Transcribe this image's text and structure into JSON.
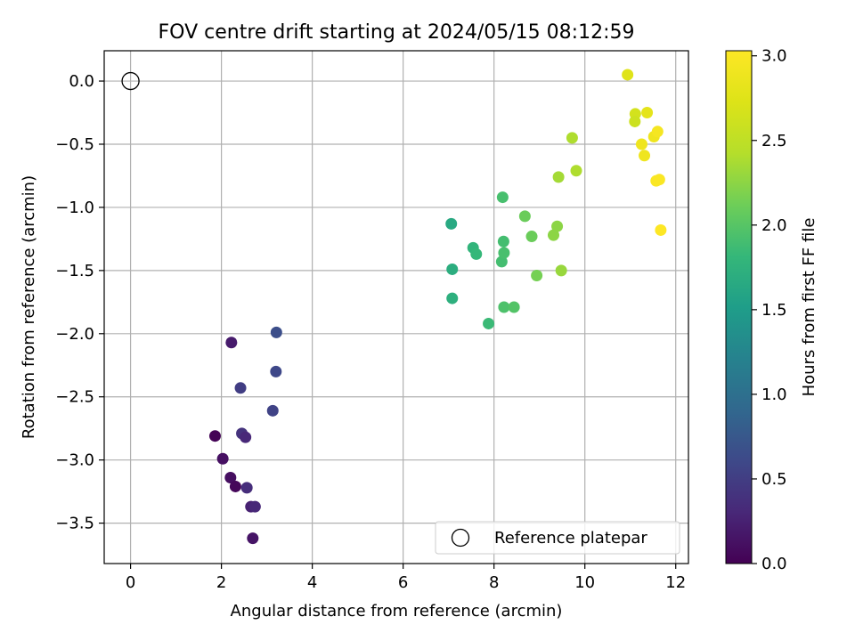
{
  "chart_data": {
    "type": "scatter",
    "title": "FOV centre drift starting at 2024/05/15 08:12:59",
    "xlabel": "Angular distance from reference (arcmin)",
    "ylabel": "Rotation from reference (arcmin)",
    "xlim": [
      -0.58,
      12.28
    ],
    "ylim": [
      -3.82,
      0.24
    ],
    "xticks": [
      0,
      2,
      4,
      6,
      8,
      10,
      12
    ],
    "yticks": [
      0.0,
      -0.5,
      -1.0,
      -1.5,
      -2.0,
      -2.5,
      -3.0,
      -3.5
    ],
    "xtick_labels": [
      "0",
      "2",
      "4",
      "6",
      "8",
      "10",
      "12"
    ],
    "ytick_labels": [
      "0.0",
      "−0.5",
      "−1.0",
      "−1.5",
      "−2.0",
      "−2.5",
      "−3.0",
      "−3.5"
    ],
    "grid": true,
    "colormap": "viridis",
    "colorbar": {
      "label": "Hours from first FF file",
      "range": [
        0.0,
        3.03
      ],
      "ticks": [
        0.0,
        0.5,
        1.0,
        1.5,
        2.0,
        2.5,
        3.0
      ],
      "tick_labels": [
        "0.0",
        "0.5",
        "1.0",
        "1.5",
        "2.0",
        "2.5",
        "3.0"
      ]
    },
    "legend": {
      "position": "bottom-right",
      "entries": [
        "Reference platepar"
      ]
    },
    "reference_point": {
      "x": 0.0,
      "y": 0.0,
      "label": "Reference platepar"
    },
    "points": [
      {
        "x": 1.86,
        "y": -2.81,
        "c": 0.02
      },
      {
        "x": 2.03,
        "y": -2.99,
        "c": 0.12
      },
      {
        "x": 2.2,
        "y": -3.14,
        "c": 0.1
      },
      {
        "x": 2.31,
        "y": -3.21,
        "c": 0.05
      },
      {
        "x": 2.22,
        "y": -2.07,
        "c": 0.2
      },
      {
        "x": 2.69,
        "y": -3.62,
        "c": 0.15
      },
      {
        "x": 2.65,
        "y": -3.37,
        "c": 0.25
      },
      {
        "x": 2.74,
        "y": -3.37,
        "c": 0.3
      },
      {
        "x": 2.56,
        "y": -3.22,
        "c": 0.35
      },
      {
        "x": 2.45,
        "y": -2.79,
        "c": 0.4
      },
      {
        "x": 2.53,
        "y": -2.82,
        "c": 0.3
      },
      {
        "x": 2.42,
        "y": -2.43,
        "c": 0.5
      },
      {
        "x": 3.13,
        "y": -2.61,
        "c": 0.55
      },
      {
        "x": 3.2,
        "y": -2.3,
        "c": 0.6
      },
      {
        "x": 3.21,
        "y": -1.99,
        "c": 0.65
      },
      {
        "x": 7.06,
        "y": -1.13,
        "c": 1.65
      },
      {
        "x": 7.08,
        "y": -1.49,
        "c": 1.7
      },
      {
        "x": 7.08,
        "y": -1.72,
        "c": 1.72
      },
      {
        "x": 7.54,
        "y": -1.32,
        "c": 1.78
      },
      {
        "x": 7.61,
        "y": -1.37,
        "c": 1.82
      },
      {
        "x": 7.88,
        "y": -1.92,
        "c": 1.85
      },
      {
        "x": 8.17,
        "y": -1.43,
        "c": 1.9
      },
      {
        "x": 8.21,
        "y": -1.27,
        "c": 1.9
      },
      {
        "x": 8.22,
        "y": -1.36,
        "c": 1.92
      },
      {
        "x": 8.19,
        "y": -0.92,
        "c": 1.92
      },
      {
        "x": 8.22,
        "y": -1.79,
        "c": 1.95
      },
      {
        "x": 8.44,
        "y": -1.79,
        "c": 1.98
      },
      {
        "x": 8.68,
        "y": -1.07,
        "c": 2.1
      },
      {
        "x": 8.83,
        "y": -1.23,
        "c": 2.1
      },
      {
        "x": 8.94,
        "y": -1.54,
        "c": 2.15
      },
      {
        "x": 9.31,
        "y": -1.22,
        "c": 2.25
      },
      {
        "x": 9.39,
        "y": -1.15,
        "c": 2.25
      },
      {
        "x": 9.48,
        "y": -1.5,
        "c": 2.3
      },
      {
        "x": 9.42,
        "y": -0.76,
        "c": 2.35
      },
      {
        "x": 9.72,
        "y": -0.45,
        "c": 2.4
      },
      {
        "x": 9.81,
        "y": -0.71,
        "c": 2.4
      },
      {
        "x": 10.94,
        "y": 0.05,
        "c": 2.75
      },
      {
        "x": 11.11,
        "y": -0.26,
        "c": 2.65
      },
      {
        "x": 11.1,
        "y": -0.32,
        "c": 2.6
      },
      {
        "x": 11.37,
        "y": -0.25,
        "c": 2.8
      },
      {
        "x": 11.25,
        "y": -0.5,
        "c": 2.9
      },
      {
        "x": 11.31,
        "y": -0.59,
        "c": 2.9
      },
      {
        "x": 11.52,
        "y": -0.44,
        "c": 2.9
      },
      {
        "x": 11.6,
        "y": -0.4,
        "c": 2.95
      },
      {
        "x": 11.57,
        "y": -0.79,
        "c": 3.0
      },
      {
        "x": 11.64,
        "y": -0.78,
        "c": 3.0
      },
      {
        "x": 11.67,
        "y": -1.18,
        "c": 3.03
      }
    ]
  }
}
